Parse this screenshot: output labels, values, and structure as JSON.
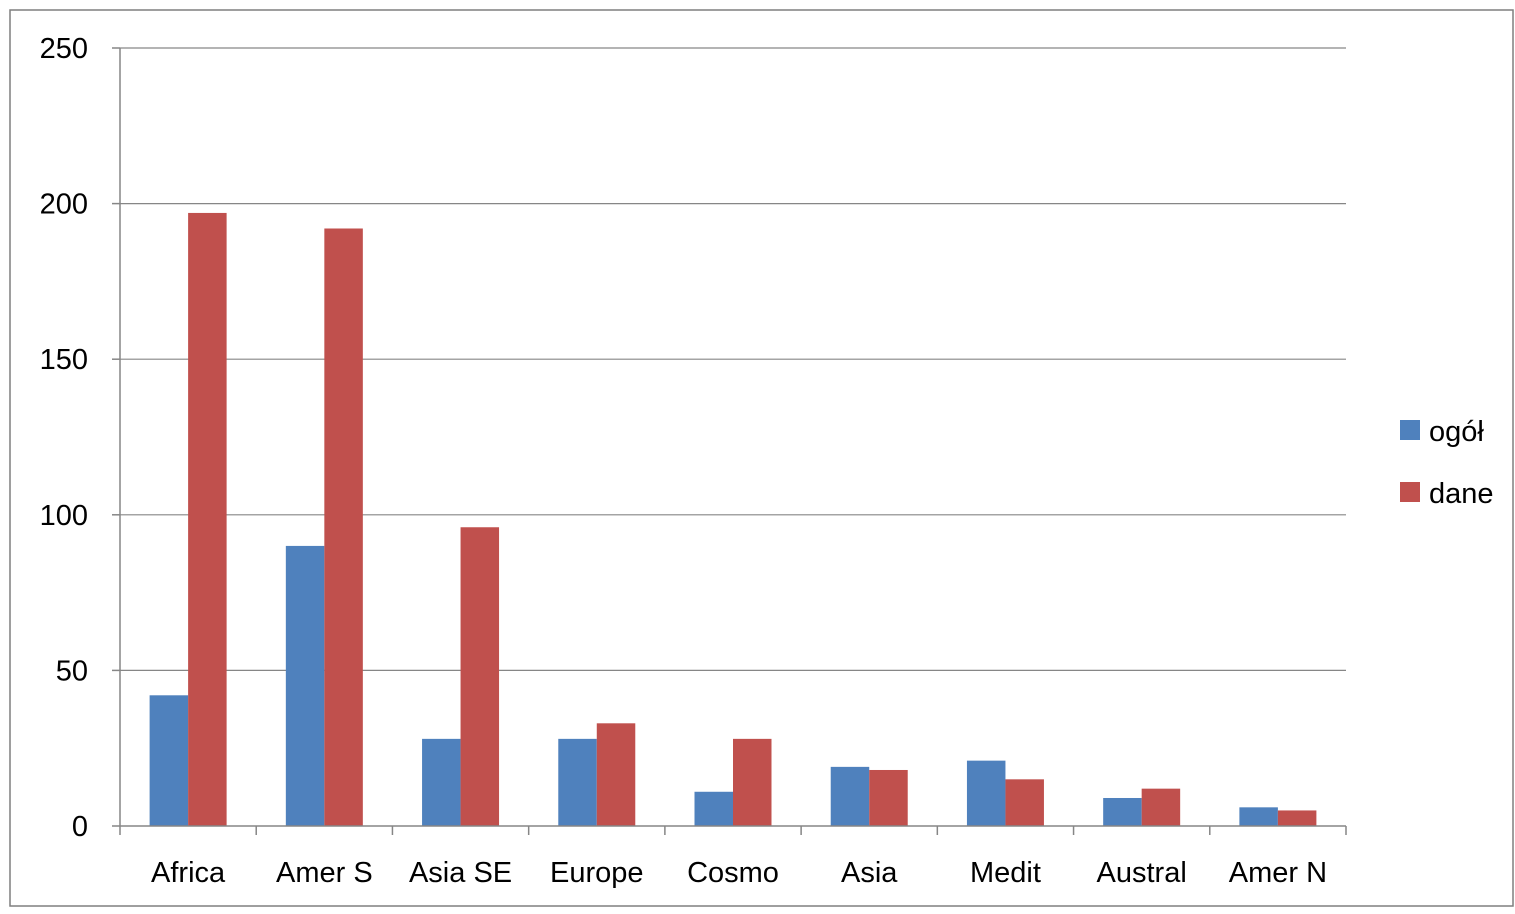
{
  "chart_data": {
    "type": "bar",
    "categories": [
      "Africa",
      "Amer S",
      "Asia SE",
      "Europe",
      "Cosmo",
      "Asia",
      "Medit",
      "Austral",
      "Amer N"
    ],
    "series": [
      {
        "name": "ogół",
        "color": "#4f81bd",
        "values": [
          42,
          90,
          28,
          28,
          11,
          19,
          21,
          9,
          6
        ]
      },
      {
        "name": "dane",
        "color": "#c0504d",
        "values": [
          197,
          192,
          96,
          33,
          28,
          18,
          15,
          12,
          5
        ]
      }
    ],
    "yticks": [
      "0",
      "50",
      "100",
      "150",
      "200",
      "250"
    ],
    "ylim": [
      0,
      250
    ],
    "grid": true,
    "legend_position": "right"
  }
}
